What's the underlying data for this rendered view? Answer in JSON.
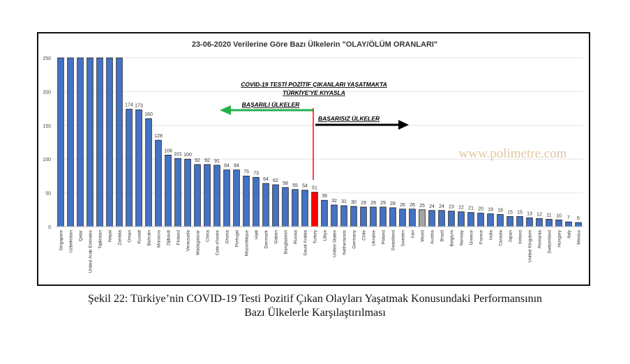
{
  "chart_data": {
    "type": "bar",
    "title": "23-06-2020 Verilerine Göre Bazı Ülkelerin \"OLAY/ÖLÜM ORANLARI\"",
    "ylim": [
      0,
      250
    ],
    "yticks": [
      0,
      50,
      100,
      150,
      200,
      250
    ],
    "grid": true,
    "categories": [
      "Singapore",
      "Uzbekistan",
      "Qatar",
      "United Arab Emirates",
      "Tajikistan",
      "Nepal",
      "Zambia",
      "Oman",
      "Kuwait",
      "Bahrain",
      "Morocco",
      "Djibouti",
      "Finland",
      "Venezuela",
      "Madagascar",
      "China",
      "Cote d'Ivoire",
      "Ghana",
      "Portugal",
      "Mozambique",
      "Haiti",
      "Denmark",
      "Gabon",
      "Bangladesh",
      "Russia",
      "Saudi Arabia",
      "Turkey",
      "Libya",
      "United States",
      "Netherlands",
      "Germany",
      "Chile",
      "Ukraine",
      "Poland",
      "Swaziland",
      "Sweden",
      "Iran",
      "World",
      "Austria",
      "Brazil",
      "Belgium",
      "Norway",
      "Greece",
      "France",
      "India",
      "Canada",
      "Japan",
      "Ireland",
      "United Kingdom",
      "Romania",
      "Switzerland",
      "Hungary",
      "Italy",
      "Mexico"
    ],
    "values": [
      250,
      250,
      250,
      250,
      250,
      250,
      250,
      174,
      173,
      160,
      128,
      106,
      101,
      100,
      92,
      92,
      91,
      84,
      84,
      75,
      73,
      64,
      62,
      58,
      55,
      54,
      51,
      39,
      32,
      31,
      30,
      29,
      29,
      29,
      28,
      26,
      26,
      25,
      24,
      24,
      23,
      22,
      21,
      20,
      19,
      18,
      15,
      15,
      13,
      12,
      11,
      10,
      7,
      6
    ],
    "data_labels_from_index": 7,
    "colors": {
      "default": "#4472c4",
      "Turkey": "#ff0000",
      "World": "#a5a5a5",
      "green_arrow": "#22b14c",
      "red_line": "#ff0000",
      "black_arrow": "#000000"
    },
    "annotations": {
      "headline1": "COVID-19 TESTİ POZİTİF ÇIKANLARI YAŞATMAKTA",
      "headline2": "TÜRKİYE'YE KIYASLA",
      "left": "BAŞARILI ÜLKELER",
      "right": "BAŞARISIZ ÜLKELER"
    },
    "watermark": "www.polimetre.com"
  },
  "caption": {
    "line1": "Şekil 22: Türkiye’nin COVID-19 Testi Pozitif Çıkan Olayları Yaşatmak Konusundaki Performansının",
    "line2": "Bazı Ülkelerle Karşılaştırılması"
  }
}
